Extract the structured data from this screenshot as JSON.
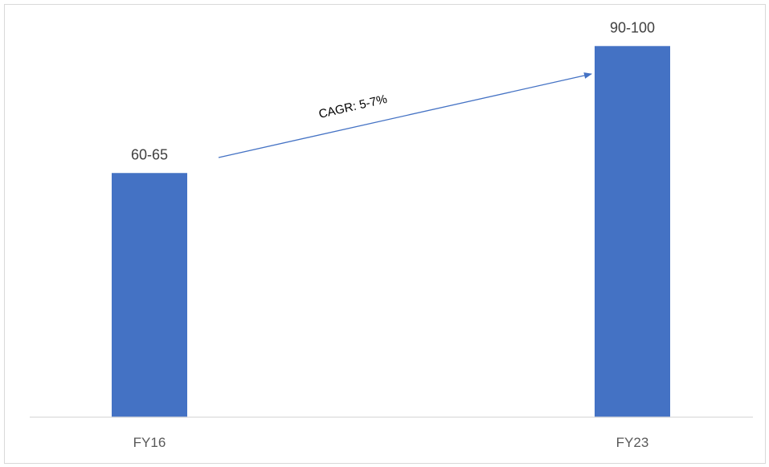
{
  "chart_data": {
    "type": "bar",
    "categories": [
      "FY16",
      "FY23"
    ],
    "values": [
      62.5,
      95
    ],
    "data_labels": [
      "60-65",
      "90-100"
    ],
    "title": "",
    "xlabel": "",
    "ylabel": "",
    "ylim": [
      0,
      100
    ],
    "grid": false,
    "legend": "none",
    "bar_color": "#4472c4",
    "annotation": {
      "text": "CAGR: 5-7%",
      "type": "arrow",
      "from": "FY16",
      "to": "FY23"
    }
  }
}
